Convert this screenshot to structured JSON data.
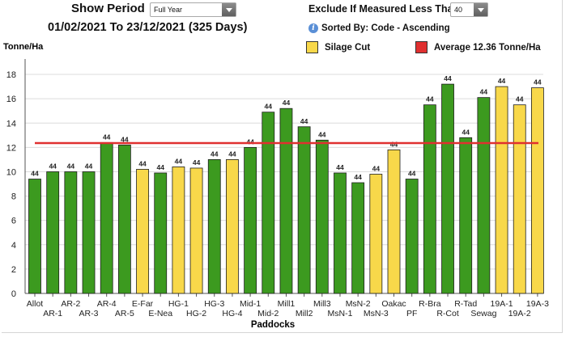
{
  "controls": {
    "show_period_label": "Show Period",
    "show_period_value": "Full Year",
    "exclude_label": "Exclude If Measured Less Than",
    "exclude_value": "40",
    "date_range": "01/02/2021 To 23/12/2021 (325 Days)",
    "sort_info": "Sorted By: Code - Ascending"
  },
  "legend": {
    "silage_label": "Silage Cut",
    "average_label": "Average 12.36 Tonne/Ha"
  },
  "colors": {
    "green": "#3c9a1f",
    "yellow": "#f8d84a",
    "average_line": "#e03030",
    "info_icon": "#5a8fd6"
  },
  "chart_data": {
    "type": "bar",
    "ylabel": "Tonne/Ha",
    "xlabel": "Paddocks",
    "ylim": [
      0,
      19
    ],
    "yticks": [
      0,
      2,
      4,
      6,
      8,
      10,
      12,
      14,
      16,
      18
    ],
    "average": 12.36,
    "grid": true,
    "categories": [
      "Allot",
      "AR-1",
      "AR-2",
      "AR-3",
      "AR-4",
      "AR-5",
      "E-Far",
      "E-Nea",
      "HG-1",
      "HG-2",
      "HG-3",
      "HG-4",
      "Mid-1",
      "Mid-2",
      "Mill1",
      "Mill2",
      "Mill3",
      "MsN-1",
      "MsN-2",
      "MsN-3",
      "Oakac",
      "PF",
      "R-Bra",
      "R-Cot",
      "R-Tad",
      "Sewag",
      "19A-1",
      "19A-2",
      "19A-3"
    ],
    "values": [
      9.4,
      10.0,
      10.0,
      10.0,
      12.4,
      12.2,
      10.2,
      9.9,
      10.4,
      10.3,
      11.0,
      11.0,
      12.0,
      14.9,
      15.2,
      13.7,
      12.6,
      9.9,
      9.1,
      9.8,
      11.8,
      9.4,
      15.5,
      17.2,
      12.8,
      16.1,
      17.0,
      15.5,
      16.9
    ],
    "silage_cut": [
      false,
      false,
      false,
      false,
      false,
      false,
      true,
      false,
      true,
      true,
      false,
      true,
      false,
      false,
      false,
      false,
      false,
      false,
      false,
      true,
      true,
      false,
      false,
      false,
      false,
      false,
      true,
      true,
      true
    ],
    "data_labels": [
      "44",
      "44",
      "44",
      "44",
      "44",
      "44",
      "44",
      "44",
      "44",
      "44",
      "44",
      "44",
      "44",
      "44",
      "44",
      "44",
      "44",
      "44",
      "44",
      "44",
      "44",
      "44",
      "44",
      "44",
      "44",
      "44",
      "44",
      "44",
      "44"
    ]
  }
}
